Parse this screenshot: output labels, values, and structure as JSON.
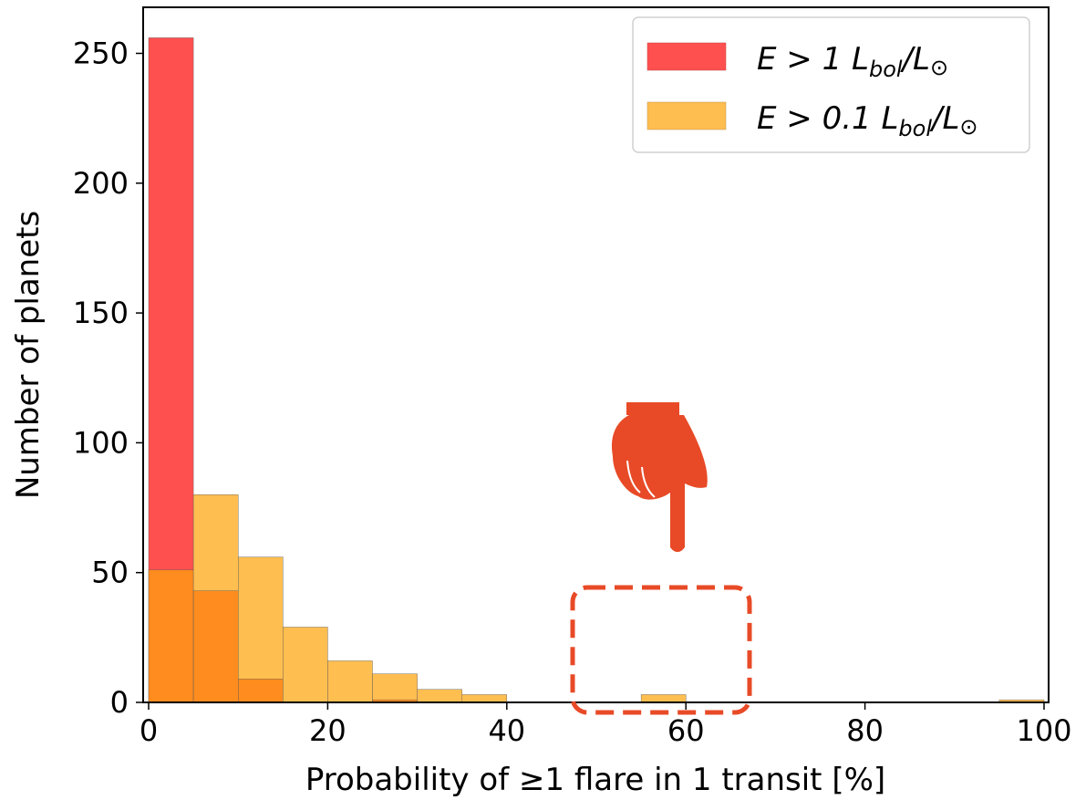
{
  "chart_data": {
    "type": "bar",
    "xlabel": "Probability of ≥1 flare in 1 transit [%]",
    "ylabel": "Number of planets",
    "xlim": [
      0,
      100
    ],
    "ylim": [
      0,
      268
    ],
    "xticks": [
      "0",
      "20",
      "40",
      "60",
      "80",
      "100"
    ],
    "yticks": [
      "0",
      "50",
      "100",
      "150",
      "200",
      "250"
    ],
    "bin_edges": [
      0,
      5,
      10,
      15,
      20,
      25,
      30,
      35,
      40,
      45,
      50,
      55,
      60,
      65,
      70,
      75,
      80,
      85,
      90,
      95,
      100
    ],
    "legend_position": "top-right",
    "series": [
      {
        "name": "E > 1 L_bol/L_⊙",
        "legend_parts": {
          "main": "E > 1 L",
          "sub": "bol",
          "tail": "/L",
          "odot": "⊙"
        },
        "color": "#ff5050",
        "values": [
          256,
          43,
          9,
          0,
          0,
          1,
          0,
          0,
          0,
          0,
          0,
          0,
          0,
          0,
          0,
          0,
          0,
          0,
          0,
          0
        ]
      },
      {
        "name": "E > 0.1 L_bol/L_⊙",
        "legend_parts": {
          "main": "E > 0.1 L",
          "sub": "bol",
          "tail": "/L",
          "odot": "⊙"
        },
        "color": "#ffbe50",
        "values": [
          51,
          80,
          56,
          29,
          16,
          11,
          5,
          3,
          0,
          0,
          0,
          3,
          0,
          0,
          0,
          0,
          0,
          0,
          0,
          1
        ]
      }
    ],
    "overlap_color": "#ff8c1e"
  },
  "annotations": {
    "pointer": "pointing-hand-icon",
    "highlight": "dashed-rounded-box",
    "color": "#e84a27"
  }
}
